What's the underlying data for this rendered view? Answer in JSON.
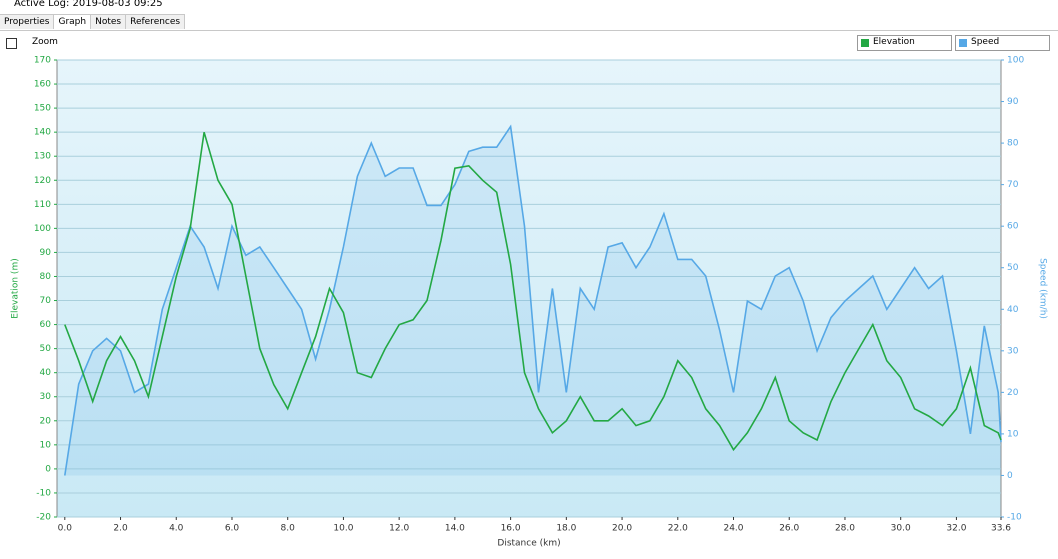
{
  "window": {
    "title": "Active Log: 2019-08-03 09:25"
  },
  "tabs": [
    "Properties",
    "Graph",
    "Notes",
    "References"
  ],
  "toolbar": {
    "zoom_label": "Zoom",
    "dropdowns": [
      "Elevation",
      "Speed"
    ]
  },
  "chart_data": {
    "type": "line",
    "x_label": "Distance  (km)",
    "y_label": "Elevation (m)",
    "y2_label": "Speed (km/h)",
    "grid": true,
    "xlim": [
      -0.28,
      33.6
    ],
    "xticks": [
      {
        "value": 0,
        "label": "0.0"
      },
      {
        "value": 2,
        "label": "2.0"
      },
      {
        "value": 4,
        "label": "4.0"
      },
      {
        "value": 6,
        "label": "6.0"
      },
      {
        "value": 8,
        "label": "8.0"
      },
      {
        "value": 10,
        "label": "10.0"
      },
      {
        "value": 12,
        "label": "12.0"
      },
      {
        "value": 14,
        "label": "14.0"
      },
      {
        "value": 16,
        "label": "16.0"
      },
      {
        "value": 18,
        "label": "18.0"
      },
      {
        "value": 20,
        "label": "20.0"
      },
      {
        "value": 22,
        "label": "22.0"
      },
      {
        "value": 24,
        "label": "24.0"
      },
      {
        "value": 26,
        "label": "26.0"
      },
      {
        "value": 28,
        "label": "28.0"
      },
      {
        "value": 30,
        "label": "30.0"
      },
      {
        "value": 32,
        "label": "32.0"
      },
      33.6
    ],
    "ylim": [
      -20,
      170
    ],
    "yticks": [
      -20,
      -10,
      0,
      10,
      20,
      30,
      40,
      50,
      60,
      70,
      80,
      90,
      100,
      110,
      120,
      130,
      140,
      150,
      160,
      170
    ],
    "y2lim": [
      -10,
      100
    ],
    "y2ticks": [
      -10,
      0,
      10,
      20,
      30,
      40,
      50,
      60,
      70,
      80,
      90,
      100
    ],
    "x": [
      0,
      0.5,
      1,
      1.5,
      2,
      2.5,
      3,
      3.5,
      4,
      4.5,
      5,
      5.5,
      6,
      6.5,
      7,
      7.5,
      8,
      8.5,
      9,
      9.5,
      10,
      10.5,
      11,
      11.5,
      12,
      12.5,
      13,
      13.5,
      14,
      14.5,
      15,
      15.5,
      16,
      16.5,
      17,
      17.5,
      18,
      18.5,
      19,
      19.5,
      20,
      20.5,
      21,
      21.5,
      22,
      22.5,
      23,
      23.5,
      24,
      24.5,
      25,
      25.5,
      26,
      26.5,
      27,
      27.5,
      28,
      28.5,
      29,
      29.5,
      30,
      30.5,
      31,
      31.5,
      32,
      32.5,
      33,
      33.5,
      33.6
    ],
    "series": [
      {
        "name": "Elevation",
        "color": "#23a844",
        "axis": "y",
        "values": [
          60,
          45,
          28,
          45,
          55,
          45,
          30,
          55,
          80,
          100,
          140,
          120,
          110,
          80,
          50,
          35,
          25,
          40,
          55,
          75,
          65,
          40,
          38,
          50,
          60,
          62,
          70,
          95,
          125,
          126,
          120,
          115,
          85,
          40,
          25,
          15,
          20,
          30,
          20,
          20,
          25,
          18,
          20,
          30,
          45,
          38,
          25,
          18,
          8,
          15,
          25,
          38,
          20,
          15,
          12,
          28,
          40,
          50,
          60,
          45,
          38,
          25,
          22,
          18,
          25,
          42,
          18,
          15,
          12
        ]
      },
      {
        "name": "Speed",
        "color": "#56a8e6",
        "axis": "y2",
        "values": [
          0,
          22,
          30,
          33,
          30,
          20,
          22,
          40,
          50,
          60,
          55,
          45,
          60,
          53,
          55,
          50,
          45,
          40,
          28,
          40,
          55,
          72,
          80,
          72,
          74,
          74,
          65,
          65,
          70,
          78,
          79,
          79,
          84,
          60,
          20,
          45,
          20,
          45,
          40,
          55,
          56,
          50,
          55,
          63,
          52,
          52,
          48,
          35,
          20,
          42,
          40,
          48,
          50,
          42,
          30,
          38,
          42,
          45,
          48,
          40,
          45,
          50,
          45,
          48,
          30,
          10,
          36,
          20,
          8
        ]
      }
    ]
  }
}
